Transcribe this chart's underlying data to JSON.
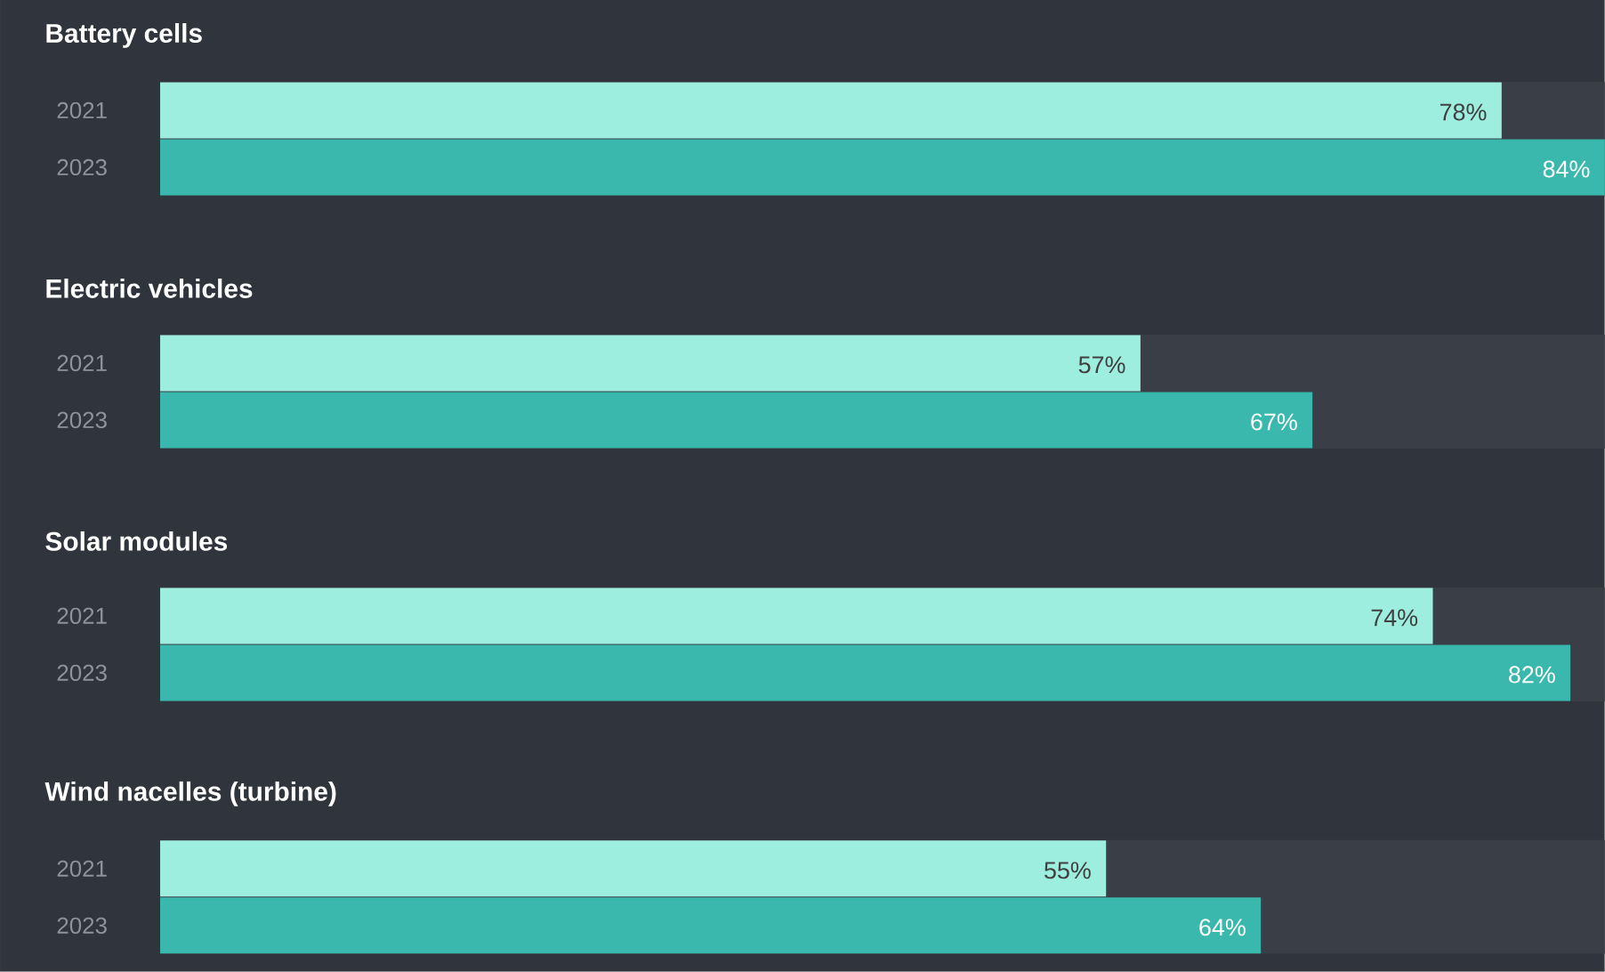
{
  "chart_data": [
    {
      "type": "bar",
      "orientation": "horizontal",
      "title": "Battery cells",
      "categories": [
        "2021",
        "2023"
      ],
      "values": [
        78,
        84
      ],
      "colors": [
        "#9eeee0",
        "#3ab8ad"
      ],
      "value_labels": [
        "78%",
        "84%"
      ]
    },
    {
      "type": "bar",
      "orientation": "horizontal",
      "title": "Electric vehicles",
      "categories": [
        "2021",
        "2023"
      ],
      "values": [
        57,
        67
      ],
      "colors": [
        "#9eeee0",
        "#3ab8ad"
      ],
      "value_labels": [
        "57%",
        "67%"
      ]
    },
    {
      "type": "bar",
      "orientation": "horizontal",
      "title": "Solar modules",
      "categories": [
        "2021",
        "2023"
      ],
      "values": [
        74,
        82
      ],
      "colors": [
        "#9eeee0",
        "#3ab8ad"
      ],
      "value_labels": [
        "74%",
        "82%"
      ]
    },
    {
      "type": "bar",
      "orientation": "horizontal",
      "title": "Wind nacelles (turbine)",
      "categories": [
        "2021",
        "2023"
      ],
      "values": [
        55,
        64
      ],
      "colors": [
        "#9eeee0",
        "#3ab8ad"
      ],
      "value_labels": [
        "55%",
        "64%"
      ]
    }
  ]
}
